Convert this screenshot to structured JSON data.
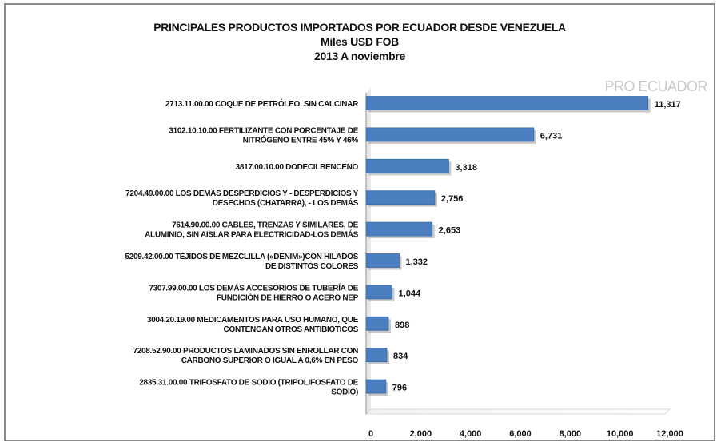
{
  "header": {
    "title": "PRINCIPALES PRODUCTOS IMPORTADOS POR ECUADOR DESDE VENEZUELA",
    "subtitle": "Miles USD FOB",
    "period": "2013 A noviembre"
  },
  "watermark": "PRO ECUADOR",
  "colors": {
    "bar": "#4a7ebf",
    "bar_shadow": "#9a9a9a",
    "text": "#111111"
  },
  "chart_data": {
    "type": "bar",
    "orientation": "horizontal",
    "title": "PRINCIPALES PRODUCTOS IMPORTADOS POR ECUADOR DESDE VENEZUELA",
    "subtitle": "Miles USD FOB",
    "period": "2013 A noviembre",
    "xlabel": "",
    "ylabel": "",
    "xlim": [
      0,
      12000
    ],
    "xticks": [
      "0",
      "2,000",
      "4,000",
      "6,000",
      "8,000",
      "10,000",
      "12,000"
    ],
    "grid": false,
    "categories": [
      [
        "2713.11.00.00 COQUE DE PETRÓLEO, SIN CALCINAR"
      ],
      [
        "3102.10.10.00 FERTILIZANTE CON PORCENTAJE DE",
        "NITRÓGENO ENTRE 45% Y 46%"
      ],
      [
        "3817.00.10.00 DODECILBENCENO"
      ],
      [
        "7204.49.00.00 LOS DEMÁS DESPERDICIOS Y - DESPERDICIOS Y",
        "DESECHOS (CHATARRA), - LOS DEMÁS"
      ],
      [
        "7614.90.00.00 CABLES, TRENZAS Y SIMILARES, DE",
        "ALUMINIO, SIN AISLAR PARA ELECTRICIDAD-LOS DEMÁS"
      ],
      [
        "5209.42.00.00 TEJIDOS DE MEZCLILLA («DENIM»)CON HILADOS",
        "DE DISTINTOS COLORES"
      ],
      [
        "7307.99.00.00 LOS DEMÁS ACCESORIOS DE TUBERÍA DE",
        "FUNDICIÓN DE HIERRO O ACERO NEP"
      ],
      [
        "3004.20.19.00 MEDICAMENTOS PARA USO HUMANO, QUE",
        "CONTENGAN OTROS ANTIBIÓTICOS"
      ],
      [
        "7208.52.90.00 PRODUCTOS LAMINADOS SIN ENROLLAR CON",
        "CARBONO SUPERIOR O IGUAL A 0,6% EN PESO"
      ],
      [
        "2835.31.00.00 TRIFOSFATO DE SODIO (TRIPOLIFOSFATO DE",
        "SODIO)"
      ]
    ],
    "values": [
      11317,
      6731,
      3318,
      2756,
      2653,
      1332,
      1044,
      898,
      834,
      796
    ],
    "value_labels": [
      "11,317",
      "6,731",
      "3,318",
      "2,756",
      "2,653",
      "1,332",
      "1,044",
      "898",
      "834",
      "796"
    ]
  }
}
